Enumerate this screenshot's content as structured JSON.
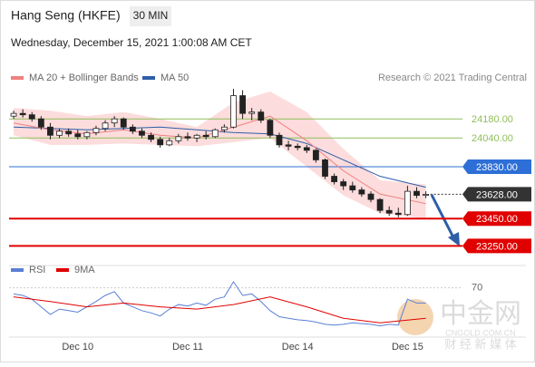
{
  "header": {
    "title": "Hang Seng (HKFE)",
    "interval": "30 MIN",
    "date": "Wednesday, December 15, 2021 1:00:08 AM CET",
    "credit": "Research © 2021 Trading Central",
    "watermark": "中金网",
    "watermark_sub": "财 经 新 媒 体",
    "watermark_url": "CNGOLD.COM.CN"
  },
  "chart_data": [
    {
      "type": "candlestick",
      "legend": [
        {
          "name": "MA 20 + Bollinger Bands",
          "color": "#f08080"
        },
        {
          "name": "MA 50",
          "color": "#2d5ea8"
        }
      ],
      "up_color": "#ffffff",
      "down_color": "#222222",
      "band_color": "#fcdcdc",
      "xlim": [
        -0.5,
        49
      ],
      "ylim": [
        23160,
        24420
      ],
      "xticks": [
        {
          "value": 7,
          "label": "Dec 10"
        },
        {
          "value": 19,
          "label": "Dec 11"
        },
        {
          "value": 31,
          "label": "Dec 14"
        },
        {
          "value": 43,
          "label": "Dec 15"
        }
      ],
      "candles": [
        [
          24200,
          24240,
          24180,
          24220
        ],
        [
          24220,
          24250,
          24190,
          24210
        ],
        [
          24210,
          24230,
          24160,
          24180
        ],
        [
          24180,
          24200,
          24100,
          24120
        ],
        [
          24120,
          24150,
          24030,
          24060
        ],
        [
          24060,
          24110,
          24040,
          24090
        ],
        [
          24090,
          24110,
          24050,
          24070
        ],
        [
          24070,
          24100,
          24030,
          24050
        ],
        [
          24050,
          24090,
          24030,
          24080
        ],
        [
          24080,
          24130,
          24060,
          24110
        ],
        [
          24110,
          24170,
          24090,
          24150
        ],
        [
          24150,
          24200,
          24120,
          24180
        ],
        [
          24180,
          24190,
          24100,
          24120
        ],
        [
          24120,
          24140,
          24070,
          24090
        ],
        [
          24090,
          24110,
          24040,
          24060
        ],
        [
          24060,
          24080,
          24010,
          24030
        ],
        [
          24030,
          24050,
          23970,
          23990
        ],
        [
          23990,
          24040,
          23980,
          24020
        ],
        [
          24020,
          24070,
          24000,
          24050
        ],
        [
          24050,
          24080,
          24020,
          24040
        ],
        [
          24040,
          24070,
          24010,
          24060
        ],
        [
          24060,
          24090,
          24030,
          24050
        ],
        [
          24050,
          24110,
          24040,
          24100
        ],
        [
          24100,
          24140,
          24080,
          24120
        ],
        [
          24120,
          24400,
          24110,
          24350
        ],
        [
          24350,
          24390,
          24180,
          24220
        ],
        [
          24220,
          24260,
          24170,
          24230
        ],
        [
          24230,
          24250,
          24150,
          24170
        ],
        [
          24170,
          24180,
          24040,
          24060
        ],
        [
          24060,
          24080,
          23970,
          23990
        ],
        [
          23990,
          24020,
          23950,
          23980
        ],
        [
          23980,
          24000,
          23950,
          23970
        ],
        [
          23970,
          23990,
          23930,
          23950
        ],
        [
          23950,
          23960,
          23860,
          23880
        ],
        [
          23880,
          23890,
          23740,
          23760
        ],
        [
          23760,
          23780,
          23700,
          23720
        ],
        [
          23720,
          23740,
          23660,
          23690
        ],
        [
          23690,
          23720,
          23640,
          23660
        ],
        [
          23660,
          23680,
          23610,
          23630
        ],
        [
          23630,
          23650,
          23570,
          23590
        ],
        [
          23590,
          23600,
          23490,
          23510
        ],
        [
          23510,
          23540,
          23470,
          23490
        ],
        [
          23490,
          23530,
          23460,
          23480
        ],
        [
          23480,
          23690,
          23470,
          23650
        ],
        [
          23650,
          23680,
          23600,
          23620
        ],
        [
          23620,
          23650,
          23600,
          23628
        ]
      ],
      "ma_x": [
        0,
        4,
        8,
        12,
        16,
        20,
        24,
        28,
        32,
        36,
        40,
        45
      ],
      "ma20": [
        24150,
        24100,
        24070,
        24100,
        24060,
        24040,
        24120,
        24200,
        24020,
        23800,
        23630,
        23560
      ],
      "ma50": [
        24120,
        24110,
        24100,
        24110,
        24120,
        24100,
        24080,
        24070,
        24000,
        23880,
        23760,
        23680
      ],
      "bb_upper": [
        24260,
        24240,
        24200,
        24230,
        24180,
        24120,
        24300,
        24380,
        24230,
        23960,
        23730,
        23700
      ],
      "bb_lower": [
        24060,
        23990,
        23990,
        24000,
        23990,
        23980,
        24010,
        24040,
        23830,
        23620,
        23490,
        23450
      ],
      "levels": [
        {
          "value": 24180,
          "label": "24180.00",
          "color": "#8fbf5a",
          "boxed": false
        },
        {
          "value": 24040,
          "label": "24040.00",
          "color": "#8fbf5a",
          "boxed": false
        },
        {
          "value": 23830,
          "label": "23830.00",
          "color": "#2d6fd6",
          "boxed": true
        },
        {
          "value": 23628,
          "label": "23628.00",
          "color": "#333333",
          "boxed": true
        },
        {
          "value": 23450,
          "label": "23450.00",
          "color": "#e00000",
          "boxed": true
        },
        {
          "value": 23250,
          "label": "23250.00",
          "color": "#e00000",
          "boxed": true
        }
      ]
    },
    {
      "type": "line",
      "xlim": [
        -0.5,
        49
      ],
      "ylim": [
        10,
        85
      ],
      "yticks": [
        70
      ],
      "series": [
        {
          "name": "RSI",
          "color": "#5a7fd6",
          "values": [
            62,
            60,
            55,
            45,
            35,
            42,
            40,
            38,
            45,
            52,
            60,
            65,
            50,
            45,
            40,
            37,
            33,
            42,
            48,
            46,
            50,
            47,
            55,
            58,
            78,
            60,
            62,
            52,
            40,
            32,
            30,
            28,
            27,
            25,
            22,
            21,
            22,
            24,
            23,
            22,
            20,
            22,
            21,
            55,
            50,
            50
          ]
        },
        {
          "name": "9MA",
          "color": "#e00000",
          "x": [
            0,
            4,
            8,
            12,
            16,
            20,
            24,
            28,
            32,
            36,
            40,
            45
          ],
          "values": [
            58,
            52,
            45,
            50,
            45,
            42,
            48,
            58,
            45,
            30,
            24,
            30
          ]
        }
      ]
    }
  ]
}
